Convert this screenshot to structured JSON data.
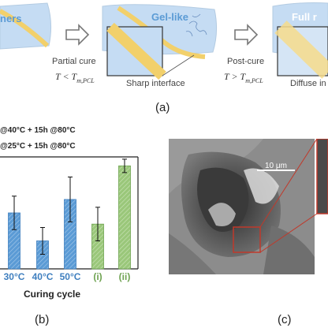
{
  "figure": {
    "panel_a": {
      "stage1_title": "ners",
      "stage2_title": "Gel-like",
      "stage3_title": "Full r",
      "arrow1_label": "Partial cure",
      "arrow1_math": "T < T",
      "arrow1_sub": "m,PCL",
      "arrow2_label": "Post-cure",
      "arrow2_math": "T > T",
      "arrow2_sub": "m,PCL",
      "inset2_caption": "Sharp interface",
      "inset3_caption": "Diffuse in",
      "panel_label": "(a)"
    },
    "panel_b": {
      "legend": [
        "@40°C + 15h @80°C",
        "@25°C + 15h @80°C"
      ],
      "xlabel": "Curing cycle",
      "panel_label": "(b)"
    },
    "panel_c": {
      "scale_bar": "10 μm",
      "panel_label": "(c)"
    },
    "colors": {
      "blue_bar": "#5b9bd5",
      "green_bar": "#9ac77a",
      "gel_bg": "#c5dcf3",
      "fiber": "#f2d06b"
    }
  },
  "chart_data": {
    "type": "bar",
    "categories": [
      "30°C",
      "40°C",
      "50°C",
      "(i)",
      "(ii)"
    ],
    "values": [
      5.0,
      2.5,
      6.2,
      4.0,
      9.2
    ],
    "errors": [
      1.5,
      1.2,
      2.0,
      1.5,
      0.6
    ],
    "colors": [
      "#5b9bd5",
      "#5b9bd5",
      "#5b9bd5",
      "#9ac77a",
      "#9ac77a"
    ],
    "xlabel": "Curing cycle",
    "ylim": [
      0,
      10
    ],
    "legend": [
      "@40°C + 15h @80°C",
      "@25°C + 15h @80°C"
    ]
  }
}
